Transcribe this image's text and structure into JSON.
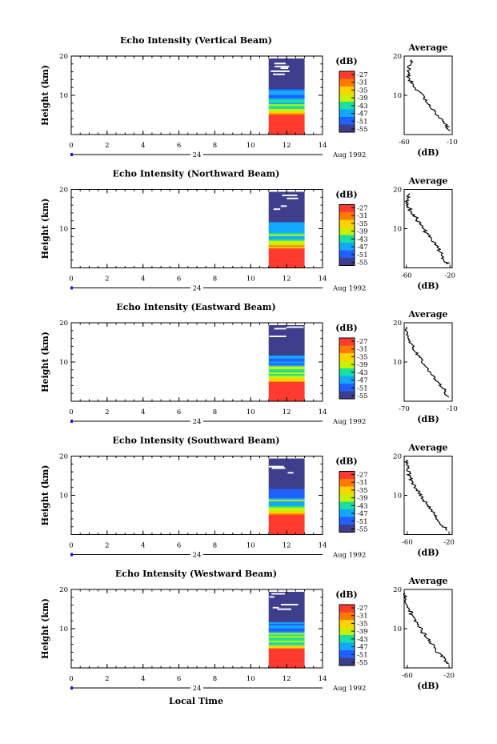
{
  "chart_data": [
    {
      "type": "heatmap",
      "title": "Echo Intensity (Vertical Beam)",
      "ylabel": "Height (km)",
      "xticks": [
        "0",
        "2",
        "4",
        "6",
        "8",
        "10",
        "12",
        "14"
      ],
      "yticks": [
        "20",
        "10"
      ],
      "xlim": [
        0,
        14
      ],
      "ylim": [
        0,
        20
      ],
      "data_x_range": [
        11,
        13
      ],
      "day_label": "24",
      "date_label": "Aug 1992",
      "colorbar": {
        "label": "(dB)",
        "ticks": [
          "-27",
          "-31",
          "-35",
          "-39",
          "-43",
          "-47",
          "-51",
          "-55"
        ]
      },
      "profile": {
        "title": "Average",
        "xlabel": "(dB)",
        "xticks": [
          "-60",
          "-10"
        ],
        "xlim": [
          -60,
          -10
        ],
        "yticks": [
          "20",
          "10"
        ],
        "heights": [
          1,
          3,
          5,
          7,
          9,
          11,
          13,
          15,
          17,
          19
        ],
        "values": [
          -13,
          -18,
          -25,
          -33,
          -38,
          -45,
          -52,
          -56,
          -55,
          -52
        ]
      }
    },
    {
      "type": "heatmap",
      "title": "Echo Intensity (Northward Beam)",
      "ylabel": "Height (km)",
      "xticks": [
        "0",
        "2",
        "4",
        "6",
        "8",
        "10",
        "12",
        "14"
      ],
      "yticks": [
        "20",
        "10"
      ],
      "xlim": [
        0,
        14
      ],
      "ylim": [
        0,
        20
      ],
      "data_x_range": [
        11,
        13
      ],
      "day_label": "24",
      "date_label": "Aug 1992",
      "colorbar": {
        "label": "(dB)",
        "ticks": [
          "-27",
          "-31",
          "-35",
          "-39",
          "-43",
          "-47",
          "-51",
          "-55"
        ]
      },
      "profile": {
        "title": "Average",
        "xlabel": "(dB)",
        "xticks": [
          "-60",
          "-20"
        ],
        "xlim": [
          -62,
          -18
        ],
        "yticks": [
          "20",
          "10"
        ],
        "heights": [
          1,
          3,
          5,
          7,
          9,
          11,
          13,
          15,
          17,
          19
        ],
        "values": [
          -22,
          -27,
          -31,
          -37,
          -42,
          -47,
          -52,
          -57,
          -60,
          -57
        ]
      }
    },
    {
      "type": "heatmap",
      "title": "Echo Intensity (Eastward Beam)",
      "ylabel": "Height (km)",
      "xticks": [
        "0",
        "2",
        "4",
        "6",
        "8",
        "10",
        "12",
        "14"
      ],
      "yticks": [
        "20",
        "10"
      ],
      "xlim": [
        0,
        14
      ],
      "ylim": [
        0,
        20
      ],
      "data_x_range": [
        11,
        13
      ],
      "day_label": "24",
      "date_label": "Aug 1992",
      "colorbar": {
        "label": "(dB)",
        "ticks": [
          "-27",
          "-31",
          "-35",
          "-39",
          "-43",
          "-47",
          "-51",
          "-55"
        ]
      },
      "profile": {
        "title": "Average",
        "xlabel": "(dB)",
        "xticks": [
          "-70",
          "-10"
        ],
        "xlim": [
          -70,
          -10
        ],
        "yticks": [
          "20",
          "10"
        ],
        "heights": [
          1,
          3,
          5,
          7,
          9,
          11,
          13,
          15,
          17,
          19
        ],
        "values": [
          -16,
          -20,
          -29,
          -36,
          -44,
          -50,
          -57,
          -62,
          -66,
          -67
        ]
      }
    },
    {
      "type": "heatmap",
      "title": "Echo Intensity (Southward Beam)",
      "ylabel": "Height (km)",
      "xticks": [
        "0",
        "2",
        "4",
        "6",
        "8",
        "10",
        "12",
        "14"
      ],
      "yticks": [
        "20",
        "10"
      ],
      "xlim": [
        0,
        14
      ],
      "ylim": [
        0,
        20
      ],
      "data_x_range": [
        11,
        13
      ],
      "day_label": "24",
      "date_label": "Aug 1992",
      "colorbar": {
        "label": "(dB)",
        "ticks": [
          "-27",
          "-31",
          "-35",
          "-39",
          "-43",
          "-47",
          "-51",
          "-55"
        ]
      },
      "profile": {
        "title": "Average",
        "xlabel": "(dB)",
        "xticks": [
          "-60",
          "-20"
        ],
        "xlim": [
          -63,
          -17
        ],
        "yticks": [
          "20",
          "10"
        ],
        "heights": [
          1,
          3,
          5,
          7,
          9,
          11,
          13,
          15,
          17,
          19
        ],
        "values": [
          -22,
          -28,
          -34,
          -39,
          -45,
          -49,
          -54,
          -58,
          -60,
          -61
        ]
      }
    },
    {
      "type": "heatmap",
      "title": "Echo Intensity (Westward Beam)",
      "ylabel": "Height (km)",
      "xticks": [
        "0",
        "2",
        "4",
        "6",
        "8",
        "10",
        "12",
        "14"
      ],
      "yticks": [
        "20",
        "10"
      ],
      "xlim": [
        0,
        14
      ],
      "ylim": [
        0,
        20
      ],
      "data_x_range": [
        11,
        13
      ],
      "day_label": "24",
      "date_label": "Aug 1992",
      "colorbar": {
        "label": "(dB)",
        "ticks": [
          "-27",
          "-31",
          "-35",
          "-39",
          "-43",
          "-47",
          "-51",
          "-55"
        ]
      },
      "profile": {
        "title": "Average",
        "xlabel": "(dB)",
        "xticks": [
          "-60",
          "-20"
        ],
        "xlim": [
          -63,
          -17
        ],
        "yticks": [
          "20",
          "10"
        ],
        "heights": [
          1,
          3,
          5,
          7,
          9,
          11,
          13,
          15,
          17,
          19
        ],
        "values": [
          -20,
          -27,
          -34,
          -39,
          -45,
          -50,
          -55,
          -58,
          -61,
          -62
        ]
      }
    }
  ],
  "footer": {
    "xlabel": "Local Time"
  },
  "colors": {
    "colormap": [
      "#ff3b30",
      "#ff7a00",
      "#ffd200",
      "#c8f000",
      "#19e0a0",
      "#12a8ff",
      "#2060ff",
      "#3e3e8c"
    ],
    "marker": "#1a1ad0"
  }
}
